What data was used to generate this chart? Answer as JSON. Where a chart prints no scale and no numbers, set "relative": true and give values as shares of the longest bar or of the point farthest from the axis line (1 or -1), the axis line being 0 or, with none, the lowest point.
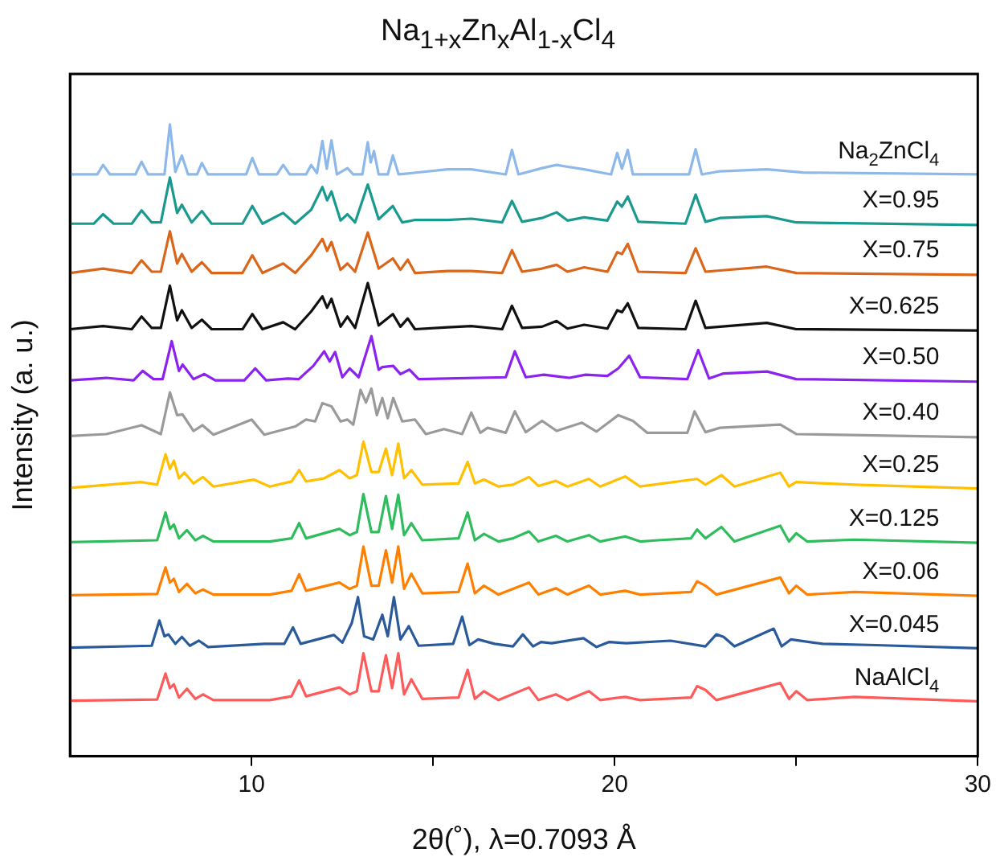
{
  "chart_data": {
    "type": "line",
    "title": "Na$_{1+x}$Zn$_{x}$Al$_{1-x}$Cl$_{4}$",
    "xlabel": "2θ(˚), λ=0.7093 Å",
    "ylabel": "Intensity (a. u.)",
    "relative": true,
    "xlim": [
      5,
      30
    ],
    "xticks": [
      10,
      {
        "value": 15,
        "label": null
      },
      20,
      {
        "value": 25,
        "label": null
      },
      30
    ],
    "grid": false,
    "legend": false,
    "series": [
      {
        "name": "Na$_{2}$ZnCl$_{4}$",
        "color": "#8db8ea",
        "x": [
          5,
          5.75,
          5.91,
          6.1,
          6.8,
          6.97,
          7.15,
          7.6,
          7.75,
          7.9,
          8.08,
          8.25,
          8.5,
          8.63,
          8.8,
          9.85,
          10.02,
          10.2,
          10.7,
          10.87,
          11.05,
          11.5,
          11.64,
          11.8,
          11.95,
          12.07,
          12.2,
          12.35,
          12.64,
          12.8,
          13.05,
          13.2,
          13.28,
          13.37,
          13.5,
          13.75,
          13.89,
          14.05,
          15.4,
          16.05,
          17.0,
          17.17,
          17.35,
          18.0,
          18.4,
          18.6,
          19.16,
          19.9,
          20.07,
          20.2,
          20.36,
          20.5,
          22.05,
          22.23,
          22.4,
          22.9,
          24.19,
          25.2,
          30
        ],
        "values": [
          0.921,
          0.921,
          0.936,
          0.921,
          0.921,
          0.941,
          0.921,
          0.921,
          1.0,
          0.925,
          0.951,
          0.921,
          0.921,
          0.939,
          0.921,
          0.921,
          0.947,
          0.921,
          0.921,
          0.936,
          0.921,
          0.921,
          0.936,
          0.923,
          0.974,
          0.93,
          0.975,
          0.921,
          0.931,
          0.921,
          0.921,
          0.972,
          0.94,
          0.958,
          0.921,
          0.921,
          0.951,
          0.921,
          0.929,
          0.929,
          0.921,
          0.96,
          0.921,
          0.931,
          0.936,
          0.934,
          0.929,
          0.921,
          0.955,
          0.93,
          0.96,
          0.921,
          0.921,
          0.961,
          0.921,
          0.926,
          0.929,
          0.924,
          0.921
        ]
      },
      {
        "name": "X=0.95",
        "color": "#1a9a8e",
        "x": [
          5,
          5.65,
          5.91,
          6.2,
          6.7,
          6.97,
          7.25,
          7.5,
          7.75,
          7.95,
          8.08,
          8.35,
          8.63,
          8.9,
          9.75,
          10.02,
          10.3,
          10.87,
          11.2,
          11.64,
          11.95,
          12.08,
          12.2,
          12.45,
          12.64,
          12.85,
          13.2,
          13.5,
          13.89,
          14.15,
          14.5,
          15.4,
          16.05,
          16.9,
          17.17,
          17.45,
          18.0,
          18.4,
          18.7,
          19.16,
          19.8,
          20.07,
          20.2,
          20.36,
          20.65,
          21.95,
          22.23,
          22.5,
          22.9,
          24.19,
          25,
          30
        ],
        "values": [
          0.843,
          0.843,
          0.858,
          0.843,
          0.843,
          0.864,
          0.845,
          0.845,
          0.916,
          0.86,
          0.873,
          0.845,
          0.863,
          0.843,
          0.843,
          0.871,
          0.843,
          0.86,
          0.843,
          0.865,
          0.901,
          0.88,
          0.894,
          0.848,
          0.858,
          0.845,
          0.905,
          0.85,
          0.871,
          0.845,
          0.849,
          0.849,
          0.851,
          0.845,
          0.879,
          0.846,
          0.852,
          0.861,
          0.848,
          0.853,
          0.848,
          0.878,
          0.87,
          0.886,
          0.846,
          0.843,
          0.889,
          0.846,
          0.852,
          0.855,
          0.845,
          0.841
        ]
      },
      {
        "name": "X=0.75",
        "color": "#d9661a",
        "x": [
          5,
          5.91,
          6.7,
          6.97,
          7.25,
          7.5,
          7.75,
          7.95,
          8.08,
          8.35,
          8.63,
          8.9,
          9.75,
          10.02,
          10.3,
          10.87,
          11.2,
          11.64,
          11.95,
          12.08,
          12.2,
          12.45,
          12.64,
          12.85,
          13.2,
          13.5,
          13.89,
          14.1,
          14.3,
          14.5,
          15.4,
          16.05,
          16.9,
          17.17,
          17.45,
          18.0,
          18.4,
          18.7,
          19.16,
          19.8,
          20.07,
          20.2,
          20.36,
          20.65,
          21.95,
          22.23,
          22.5,
          24.19,
          25,
          30
        ],
        "values": [
          0.765,
          0.772,
          0.765,
          0.785,
          0.767,
          0.767,
          0.831,
          0.78,
          0.795,
          0.767,
          0.782,
          0.765,
          0.765,
          0.793,
          0.765,
          0.78,
          0.765,
          0.793,
          0.819,
          0.8,
          0.814,
          0.77,
          0.78,
          0.767,
          0.829,
          0.772,
          0.788,
          0.77,
          0.786,
          0.765,
          0.768,
          0.768,
          0.765,
          0.801,
          0.767,
          0.772,
          0.778,
          0.767,
          0.774,
          0.767,
          0.798,
          0.795,
          0.811,
          0.767,
          0.765,
          0.804,
          0.767,
          0.775,
          0.765,
          0.762
        ]
      },
      {
        "name": "X=0.625",
        "color": "#111111",
        "x": [
          5,
          5.91,
          6.7,
          6.97,
          7.25,
          7.5,
          7.75,
          7.95,
          8.08,
          8.35,
          8.63,
          8.9,
          9.75,
          10.02,
          10.3,
          10.87,
          11.2,
          11.64,
          11.95,
          12.08,
          12.2,
          12.45,
          12.64,
          12.85,
          13.2,
          13.5,
          13.89,
          14.1,
          14.3,
          14.5,
          15.4,
          16.05,
          16.9,
          17.17,
          17.45,
          18.0,
          18.4,
          18.7,
          19.16,
          19.8,
          20.07,
          20.2,
          20.36,
          20.65,
          21.95,
          22.23,
          22.5,
          24.19,
          25,
          30
        ],
        "values": [
          0.676,
          0.681,
          0.676,
          0.696,
          0.678,
          0.678,
          0.745,
          0.69,
          0.706,
          0.678,
          0.691,
          0.676,
          0.676,
          0.7,
          0.676,
          0.687,
          0.676,
          0.704,
          0.728,
          0.71,
          0.724,
          0.68,
          0.696,
          0.678,
          0.749,
          0.682,
          0.7,
          0.68,
          0.693,
          0.676,
          0.679,
          0.681,
          0.676,
          0.713,
          0.678,
          0.68,
          0.689,
          0.677,
          0.683,
          0.677,
          0.706,
          0.703,
          0.717,
          0.678,
          0.676,
          0.721,
          0.678,
          0.686,
          0.676,
          0.674
        ]
      },
      {
        "name": "X=0.50",
        "color": "#8b22f0",
        "x": [
          5,
          6.0,
          6.75,
          7.0,
          7.3,
          7.55,
          7.8,
          8.0,
          8.1,
          8.4,
          8.7,
          9.0,
          9.8,
          10.1,
          10.4,
          11.0,
          11.3,
          11.7,
          12.0,
          12.15,
          12.3,
          12.5,
          12.7,
          12.95,
          13.3,
          13.5,
          13.6,
          13.9,
          14.1,
          14.35,
          14.6,
          17.0,
          17.25,
          17.55,
          18.05,
          18.45,
          18.75,
          19.2,
          19.8,
          20.1,
          20.4,
          20.7,
          22.0,
          22.3,
          22.6,
          23.0,
          24.2,
          25,
          30
        ],
        "values": [
          0.595,
          0.599,
          0.595,
          0.61,
          0.597,
          0.597,
          0.657,
          0.61,
          0.62,
          0.597,
          0.605,
          0.595,
          0.595,
          0.614,
          0.595,
          0.598,
          0.597,
          0.618,
          0.641,
          0.625,
          0.64,
          0.6,
          0.614,
          0.6,
          0.665,
          0.612,
          0.616,
          0.618,
          0.605,
          0.612,
          0.597,
          0.6,
          0.641,
          0.6,
          0.604,
          0.601,
          0.599,
          0.604,
          0.602,
          0.614,
          0.634,
          0.6,
          0.597,
          0.643,
          0.598,
          0.606,
          0.609,
          0.597,
          0.593
        ]
      },
      {
        "name": "X=0.40",
        "color": "#9a9a9a",
        "x": [
          5,
          6.0,
          6.97,
          7.5,
          7.75,
          7.95,
          8.1,
          8.4,
          8.65,
          8.95,
          10.0,
          10.35,
          11.2,
          11.5,
          11.75,
          11.95,
          12.2,
          12.45,
          12.64,
          12.8,
          13.0,
          13.15,
          13.3,
          13.45,
          13.6,
          13.75,
          13.9,
          14.15,
          14.5,
          14.8,
          15.3,
          15.8,
          16.05,
          16.3,
          16.5,
          17.0,
          17.25,
          17.55,
          18.0,
          18.4,
          19.1,
          19.5,
          20.1,
          20.5,
          20.9,
          22.0,
          22.2,
          22.5,
          22.9,
          24.56,
          25,
          30
        ],
        "values": [
          0.507,
          0.51,
          0.524,
          0.51,
          0.576,
          0.54,
          0.541,
          0.515,
          0.524,
          0.509,
          0.533,
          0.509,
          0.522,
          0.533,
          0.53,
          0.559,
          0.554,
          0.53,
          0.533,
          0.525,
          0.58,
          0.56,
          0.582,
          0.54,
          0.567,
          0.535,
          0.567,
          0.53,
          0.533,
          0.51,
          0.518,
          0.51,
          0.544,
          0.512,
          0.52,
          0.512,
          0.546,
          0.513,
          0.531,
          0.515,
          0.528,
          0.514,
          0.54,
          0.531,
          0.512,
          0.512,
          0.546,
          0.513,
          0.52,
          0.525,
          0.51,
          0.505
        ]
      },
      {
        "name": "X=0.25",
        "color": "#ffc000",
        "x": [
          5,
          6.97,
          7.4,
          7.63,
          7.75,
          7.86,
          8.0,
          8.15,
          8.4,
          8.66,
          8.95,
          10.06,
          10.5,
          11.1,
          11.31,
          11.5,
          12.0,
          12.42,
          12.7,
          12.9,
          13.08,
          13.3,
          13.5,
          13.7,
          13.87,
          14.04,
          14.2,
          14.4,
          14.7,
          15.7,
          15.95,
          16.15,
          16.4,
          16.8,
          17.2,
          17.64,
          17.9,
          18.38,
          18.7,
          19.29,
          19.6,
          20.29,
          20.7,
          22.27,
          22.5,
          22.94,
          23.3,
          24.56,
          24.8,
          25.0,
          26.6,
          30
        ],
        "values": [
          0.425,
          0.434,
          0.43,
          0.478,
          0.455,
          0.468,
          0.44,
          0.449,
          0.432,
          0.442,
          0.427,
          0.438,
          0.427,
          0.435,
          0.453,
          0.435,
          0.44,
          0.453,
          0.44,
          0.445,
          0.498,
          0.45,
          0.45,
          0.487,
          0.445,
          0.495,
          0.44,
          0.453,
          0.43,
          0.432,
          0.466,
          0.432,
          0.438,
          0.427,
          0.43,
          0.442,
          0.428,
          0.436,
          0.427,
          0.439,
          0.427,
          0.443,
          0.427,
          0.439,
          0.43,
          0.445,
          0.427,
          0.449,
          0.427,
          0.434,
          0.43,
          0.424
        ]
      },
      {
        "name": "X=0.125",
        "color": "#2ebd5c",
        "x": [
          5,
          7.4,
          7.63,
          7.75,
          7.86,
          8.0,
          8.22,
          8.45,
          8.66,
          8.95,
          10.5,
          11.1,
          11.31,
          11.5,
          12.42,
          12.7,
          12.9,
          13.08,
          13.3,
          13.5,
          13.7,
          13.87,
          14.04,
          14.2,
          14.4,
          14.7,
          15.7,
          15.95,
          16.15,
          16.4,
          16.8,
          17.2,
          17.64,
          17.9,
          18.38,
          18.7,
          19.29,
          19.6,
          20.29,
          20.7,
          21.2,
          22.1,
          22.27,
          22.5,
          22.94,
          23.3,
          24.56,
          24.8,
          25.0,
          25.3,
          26.6,
          30
        ],
        "values": [
          0.339,
          0.342,
          0.386,
          0.36,
          0.367,
          0.345,
          0.358,
          0.342,
          0.349,
          0.34,
          0.34,
          0.345,
          0.369,
          0.345,
          0.36,
          0.35,
          0.355,
          0.415,
          0.355,
          0.355,
          0.412,
          0.36,
          0.414,
          0.35,
          0.369,
          0.342,
          0.345,
          0.386,
          0.342,
          0.352,
          0.34,
          0.345,
          0.356,
          0.34,
          0.349,
          0.34,
          0.35,
          0.34,
          0.348,
          0.34,
          0.342,
          0.345,
          0.359,
          0.345,
          0.363,
          0.34,
          0.365,
          0.34,
          0.353,
          0.34,
          0.343,
          0.338
        ]
      },
      {
        "name": "X=0.06",
        "color": "#ff8000",
        "x": [
          5,
          7.4,
          7.63,
          7.75,
          7.86,
          8.0,
          8.22,
          8.45,
          8.66,
          8.95,
          10.5,
          11.1,
          11.31,
          11.5,
          12.42,
          12.7,
          12.9,
          13.08,
          13.3,
          13.5,
          13.7,
          13.87,
          14.04,
          14.2,
          14.4,
          14.7,
          15.7,
          15.95,
          16.15,
          16.4,
          16.8,
          17.64,
          17.9,
          18.38,
          18.7,
          19.29,
          19.6,
          20.29,
          20.7,
          22.1,
          22.27,
          22.5,
          22.8,
          24.56,
          24.8,
          25.0,
          25.3,
          26.6,
          30
        ],
        "values": [
          0.255,
          0.257,
          0.299,
          0.275,
          0.281,
          0.26,
          0.273,
          0.258,
          0.264,
          0.256,
          0.256,
          0.262,
          0.288,
          0.262,
          0.275,
          0.265,
          0.27,
          0.332,
          0.27,
          0.27,
          0.326,
          0.275,
          0.332,
          0.265,
          0.289,
          0.258,
          0.26,
          0.305,
          0.258,
          0.27,
          0.256,
          0.275,
          0.256,
          0.266,
          0.256,
          0.27,
          0.256,
          0.262,
          0.256,
          0.26,
          0.277,
          0.27,
          0.256,
          0.283,
          0.258,
          0.27,
          0.256,
          0.26,
          0.254
        ]
      },
      {
        "name": "X=0.045",
        "color": "#2a5a9a",
        "x": [
          5,
          7.25,
          7.46,
          7.6,
          7.71,
          7.9,
          8.08,
          8.3,
          8.55,
          8.8,
          10.36,
          10.9,
          11.14,
          11.35,
          12.27,
          12.5,
          12.76,
          12.93,
          13.1,
          13.35,
          13.6,
          13.75,
          13.92,
          14.1,
          14.33,
          14.6,
          15.55,
          15.8,
          16.0,
          16.24,
          16.69,
          17.2,
          17.47,
          17.75,
          17.97,
          18.26,
          19.14,
          19.5,
          19.85,
          20.32,
          21.54,
          22.5,
          22.8,
          23.0,
          23.3,
          24.38,
          24.6,
          24.85,
          25.73,
          27.2,
          30
        ],
        "values": [
          0.172,
          0.175,
          0.215,
          0.19,
          0.193,
          0.178,
          0.189,
          0.175,
          0.183,
          0.173,
          0.178,
          0.178,
          0.204,
          0.178,
          0.192,
          0.18,
          0.211,
          0.252,
          0.19,
          0.185,
          0.224,
          0.19,
          0.252,
          0.185,
          0.206,
          0.175,
          0.178,
          0.221,
          0.176,
          0.185,
          0.178,
          0.174,
          0.193,
          0.174,
          0.181,
          0.179,
          0.187,
          0.173,
          0.181,
          0.179,
          0.183,
          0.174,
          0.193,
          0.189,
          0.174,
          0.202,
          0.174,
          0.185,
          0.178,
          0.176,
          0.171
        ]
      },
      {
        "name": "NaAlCl$_{4}$",
        "color": "#ff5a5a",
        "x": [
          5,
          7.4,
          7.63,
          7.75,
          7.86,
          8.0,
          8.22,
          8.45,
          8.66,
          8.95,
          10.5,
          11.1,
          11.31,
          11.5,
          12.42,
          12.7,
          12.9,
          13.08,
          13.3,
          13.5,
          13.7,
          13.87,
          14.04,
          14.2,
          14.4,
          14.7,
          15.7,
          15.95,
          16.15,
          16.4,
          16.8,
          17.64,
          17.9,
          18.38,
          18.7,
          19.29,
          19.6,
          20.29,
          20.7,
          22.1,
          22.27,
          22.5,
          22.8,
          24.56,
          24.8,
          25.0,
          25.3,
          26.6,
          30
        ],
        "values": [
          0.088,
          0.09,
          0.131,
          0.108,
          0.114,
          0.093,
          0.107,
          0.091,
          0.098,
          0.089,
          0.089,
          0.095,
          0.12,
          0.095,
          0.109,
          0.098,
          0.103,
          0.163,
          0.103,
          0.103,
          0.16,
          0.108,
          0.163,
          0.098,
          0.122,
          0.091,
          0.093,
          0.137,
          0.091,
          0.103,
          0.089,
          0.109,
          0.089,
          0.098,
          0.089,
          0.103,
          0.089,
          0.094,
          0.089,
          0.093,
          0.111,
          0.105,
          0.089,
          0.116,
          0.091,
          0.103,
          0.089,
          0.094,
          0.087
        ]
      }
    ]
  }
}
